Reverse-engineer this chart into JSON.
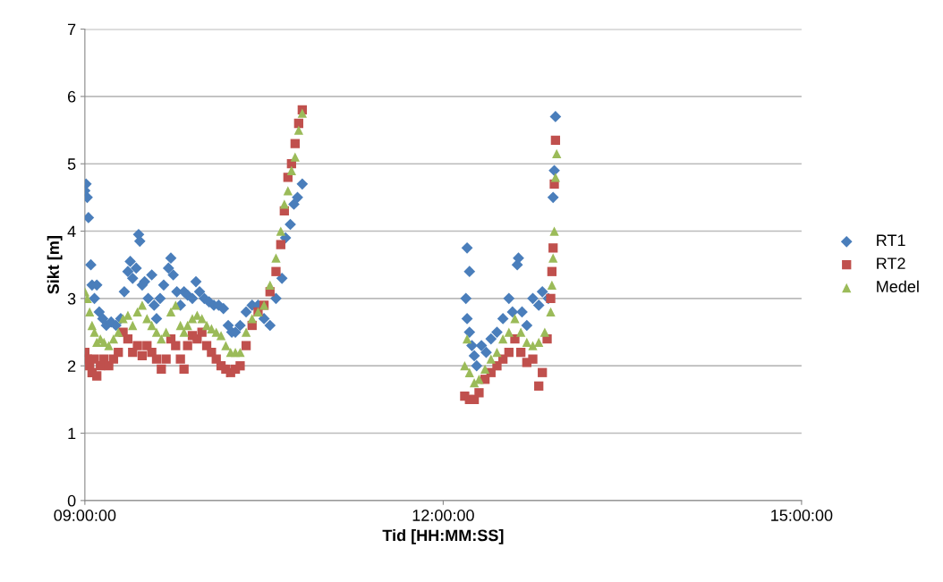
{
  "chart_data": {
    "type": "scatter",
    "xlabel": "Tid [HH:MM:SS]",
    "ylabel": "Sikt [m]",
    "xlim": [
      9,
      15
    ],
    "xticks": [
      {
        "value": 9,
        "label": "09:00:00"
      },
      {
        "value": 12,
        "label": "12:00:00"
      },
      {
        "value": 15,
        "label": "15:00:00"
      }
    ],
    "ylim": [
      0,
      7
    ],
    "yticks": [
      0,
      1,
      2,
      3,
      4,
      5,
      6,
      7
    ],
    "grid": "y",
    "legend": "right",
    "series": [
      {
        "name": "RT1",
        "color": "#4a7ebb",
        "marker": "diamond",
        "x": [
          9.0,
          9.01,
          9.02,
          9.03,
          9.05,
          9.06,
          9.08,
          9.1,
          9.12,
          9.15,
          9.18,
          9.22,
          9.26,
          9.3,
          9.33,
          9.36,
          9.38,
          9.4,
          9.43,
          9.45,
          9.46,
          9.48,
          9.5,
          9.53,
          9.56,
          9.58,
          9.6,
          9.63,
          9.66,
          9.7,
          9.72,
          9.74,
          9.77,
          9.8,
          9.83,
          9.86,
          9.9,
          9.93,
          9.96,
          10.0,
          10.04,
          10.08,
          10.12,
          10.16,
          10.2,
          10.23,
          10.26,
          10.3,
          10.35,
          10.4,
          10.45,
          10.5,
          10.55,
          10.6,
          10.65,
          10.68,
          10.72,
          10.75,
          10.78,
          10.82,
          12.2,
          12.22,
          12.19,
          12.2,
          12.22,
          12.24,
          12.26,
          12.28,
          12.32,
          12.36,
          12.4,
          12.45,
          12.5,
          12.55,
          12.58,
          12.62,
          12.63,
          12.66,
          12.7,
          12.75,
          12.8,
          12.83,
          12.88,
          12.92,
          12.93,
          12.94
        ],
        "values": [
          4.6,
          4.7,
          4.5,
          4.2,
          3.5,
          3.2,
          3.0,
          3.2,
          2.8,
          2.7,
          2.6,
          2.65,
          2.6,
          2.7,
          3.1,
          3.4,
          3.55,
          3.3,
          3.45,
          3.95,
          3.85,
          3.2,
          3.25,
          3.0,
          3.35,
          2.9,
          2.7,
          3.0,
          3.2,
          3.45,
          3.6,
          3.35,
          3.1,
          2.9,
          3.1,
          3.05,
          3.0,
          3.25,
          3.1,
          3.0,
          2.95,
          2.9,
          2.9,
          2.85,
          2.6,
          2.5,
          2.5,
          2.6,
          2.8,
          2.9,
          2.9,
          2.7,
          2.6,
          3.0,
          3.3,
          3.9,
          4.1,
          4.4,
          4.5,
          4.7,
          3.75,
          3.4,
          3.0,
          2.7,
          2.5,
          2.3,
          2.15,
          2.0,
          2.3,
          2.2,
          2.4,
          2.5,
          2.7,
          3.0,
          2.8,
          3.5,
          3.6,
          2.8,
          2.6,
          3.0,
          2.9,
          3.1,
          3.0,
          4.5,
          4.9,
          5.7
        ]
      },
      {
        "name": "RT2",
        "color": "#c0504d",
        "marker": "square",
        "x": [
          9.0,
          9.02,
          9.04,
          9.06,
          9.08,
          9.1,
          9.13,
          9.16,
          9.2,
          9.24,
          9.28,
          9.32,
          9.36,
          9.4,
          9.44,
          9.48,
          9.52,
          9.56,
          9.6,
          9.64,
          9.68,
          9.72,
          9.76,
          9.8,
          9.83,
          9.86,
          9.9,
          9.94,
          9.98,
          10.02,
          10.06,
          10.1,
          10.14,
          10.18,
          10.22,
          10.26,
          10.3,
          10.35,
          10.4,
          10.45,
          10.5,
          10.55,
          10.6,
          10.64,
          10.67,
          10.7,
          10.73,
          10.76,
          10.79,
          10.82,
          12.18,
          12.22,
          12.26,
          12.3,
          12.35,
          12.4,
          12.45,
          12.5,
          12.55,
          12.6,
          12.65,
          12.7,
          12.75,
          12.8,
          12.83,
          12.87,
          12.9,
          12.91,
          12.92,
          12.93,
          12.94
        ],
        "values": [
          2.2,
          2.1,
          2.0,
          1.9,
          2.1,
          1.85,
          2.0,
          2.1,
          2.0,
          2.1,
          2.2,
          2.5,
          2.4,
          2.2,
          2.3,
          2.15,
          2.3,
          2.2,
          2.1,
          1.95,
          2.1,
          2.4,
          2.3,
          2.1,
          1.95,
          2.3,
          2.45,
          2.4,
          2.5,
          2.3,
          2.2,
          2.1,
          2.0,
          1.95,
          1.9,
          1.95,
          2.0,
          2.3,
          2.6,
          2.8,
          2.9,
          3.1,
          3.4,
          3.8,
          4.3,
          4.8,
          5.0,
          5.3,
          5.6,
          5.8,
          1.55,
          1.5,
          1.5,
          1.6,
          1.8,
          1.9,
          2.0,
          2.1,
          2.2,
          2.4,
          2.2,
          2.05,
          2.1,
          1.7,
          1.9,
          2.4,
          3.0,
          3.4,
          3.75,
          4.7,
          5.35
        ]
      },
      {
        "name": "Medel",
        "color": "#9bbb59",
        "marker": "triangle",
        "x": [
          9.0,
          9.02,
          9.04,
          9.06,
          9.08,
          9.1,
          9.13,
          9.16,
          9.2,
          9.24,
          9.28,
          9.32,
          9.36,
          9.4,
          9.44,
          9.48,
          9.52,
          9.56,
          9.6,
          9.64,
          9.68,
          9.72,
          9.76,
          9.8,
          9.83,
          9.86,
          9.9,
          9.94,
          9.98,
          10.02,
          10.06,
          10.1,
          10.14,
          10.18,
          10.22,
          10.26,
          10.3,
          10.35,
          10.4,
          10.45,
          10.5,
          10.55,
          10.6,
          10.64,
          10.67,
          10.7,
          10.73,
          10.76,
          10.79,
          10.82,
          12.18,
          12.2,
          12.22,
          12.26,
          12.3,
          12.35,
          12.4,
          12.45,
          12.5,
          12.55,
          12.6,
          12.65,
          12.7,
          12.75,
          12.8,
          12.85,
          12.9,
          12.91,
          12.92,
          12.93,
          12.94,
          12.95
        ],
        "values": [
          3.1,
          3.0,
          2.8,
          2.6,
          2.5,
          2.35,
          2.4,
          2.35,
          2.3,
          2.4,
          2.5,
          2.7,
          2.75,
          2.6,
          2.8,
          2.9,
          2.7,
          2.6,
          2.5,
          2.4,
          2.5,
          2.8,
          2.9,
          2.6,
          2.5,
          2.6,
          2.7,
          2.75,
          2.7,
          2.6,
          2.55,
          2.5,
          2.45,
          2.3,
          2.2,
          2.2,
          2.2,
          2.5,
          2.7,
          2.8,
          2.9,
          3.2,
          3.6,
          4.0,
          4.4,
          4.6,
          4.9,
          5.1,
          5.5,
          5.75,
          2.0,
          2.4,
          1.9,
          1.75,
          1.8,
          1.95,
          2.1,
          2.2,
          2.4,
          2.5,
          2.7,
          2.5,
          2.35,
          2.3,
          2.35,
          2.5,
          2.8,
          3.2,
          3.6,
          4.0,
          4.8,
          5.15
        ]
      }
    ]
  }
}
